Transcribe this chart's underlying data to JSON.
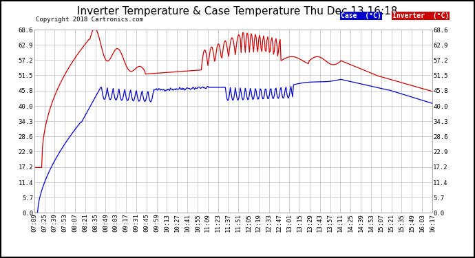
{
  "title": "Inverter Temperature & Case Temperature Thu Dec 13 16:18",
  "copyright": "Copyright 2018 Cartronics.com",
  "background_color": "#ffffff",
  "plot_bg_color": "#ffffff",
  "grid_color": "#bbbbbb",
  "yticks": [
    0.0,
    5.7,
    11.4,
    17.2,
    22.9,
    28.6,
    34.3,
    40.0,
    45.8,
    51.5,
    57.2,
    62.9,
    68.6
  ],
  "ylim": [
    0.0,
    68.6
  ],
  "legend_case_color": "#0000cc",
  "legend_inverter_color": "#cc0000",
  "legend_case_label": "Case  (°C)",
  "legend_inverter_label": "Inverter  (°C)",
  "xtick_labels": [
    "07:09",
    "07:25",
    "07:39",
    "07:53",
    "08:07",
    "08:21",
    "08:35",
    "08:49",
    "09:03",
    "09:17",
    "09:31",
    "09:45",
    "09:59",
    "10:13",
    "10:27",
    "10:41",
    "10:55",
    "11:09",
    "11:23",
    "11:37",
    "11:51",
    "12:05",
    "12:19",
    "12:33",
    "12:47",
    "13:01",
    "13:15",
    "13:29",
    "13:43",
    "13:57",
    "14:11",
    "14:25",
    "14:39",
    "14:53",
    "15:07",
    "15:21",
    "15:35",
    "15:49",
    "16:03",
    "16:17"
  ],
  "case_color": "#0000cc",
  "inverter_color": "#cc0000",
  "title_fontsize": 11,
  "tick_fontsize": 6.5,
  "copyright_fontsize": 6.5
}
